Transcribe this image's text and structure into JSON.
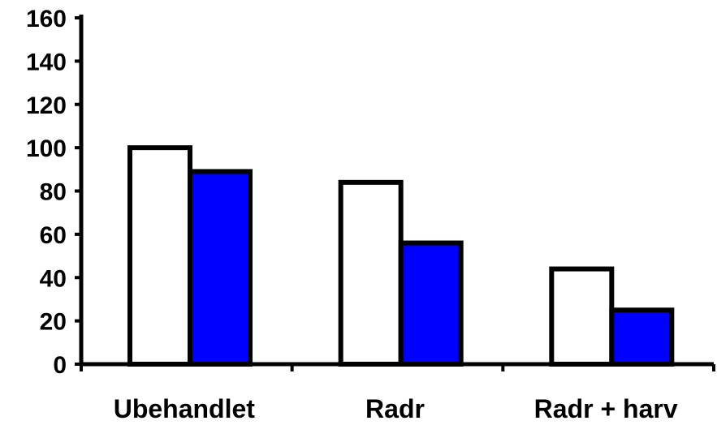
{
  "chart_data": {
    "type": "bar",
    "categories": [
      "Ubehandlet",
      "Radr",
      "Radr + harv"
    ],
    "series": [
      {
        "values": [
          100,
          84,
          44
        ],
        "fill": "#ffffff"
      },
      {
        "values": [
          89,
          56,
          25
        ],
        "fill": "#0000ff"
      }
    ],
    "title": "",
    "xlabel": "",
    "ylabel": "",
    "ylim": [
      0,
      160
    ],
    "yticks": [
      0,
      20,
      40,
      60,
      80,
      100,
      120,
      140,
      160
    ],
    "grid": false,
    "legend": "none"
  },
  "colors": {
    "axis": "#000000",
    "bar_outline": "#000000"
  }
}
